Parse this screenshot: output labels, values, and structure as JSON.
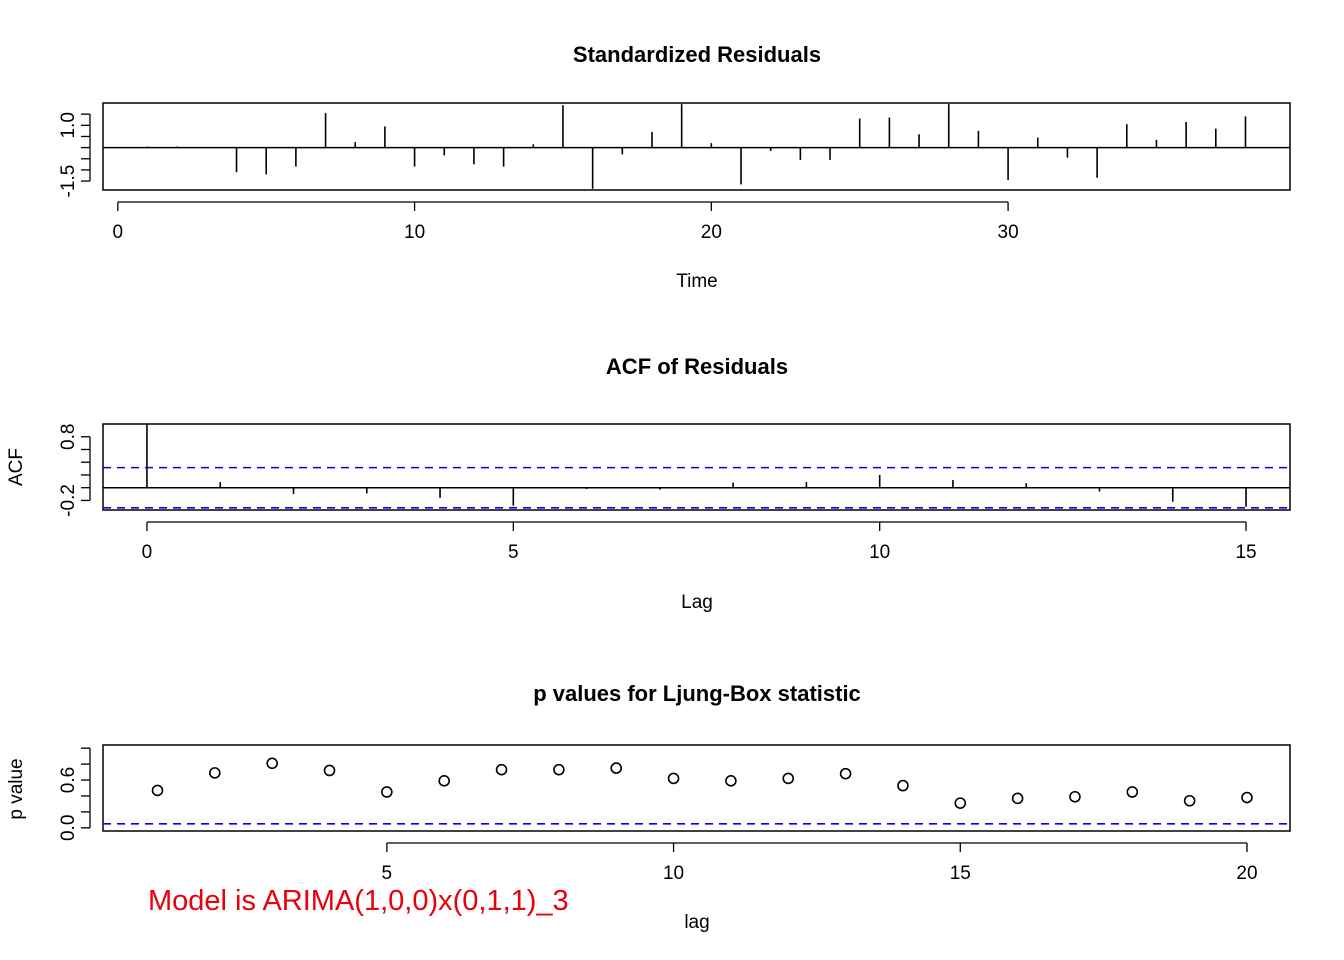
{
  "colors": {
    "reference_line": "#0000ff",
    "note": "#e8000b",
    "ink": "#000000"
  },
  "note": "Model is ARIMA(1,0,0)x(0,1,1)_3",
  "chart_data": [
    {
      "type": "line",
      "style": "histogram-spikes",
      "title": "Standardized Residuals",
      "xlabel": "Time",
      "ylabel": "",
      "xlim": [
        -0.5,
        39.5
      ],
      "ylim": [
        -1.9,
        2.0
      ],
      "xticks": [
        0,
        10,
        20,
        30
      ],
      "yticks": [
        -1.5,
        1.0
      ],
      "ytick_labels": [
        "-1.5",
        "1.0"
      ],
      "y_minor_ticks": [
        -1.5,
        -1.0,
        -0.5,
        0.0,
        0.5,
        1.0,
        1.5
      ],
      "baseline": 0,
      "x": [
        1,
        2,
        3,
        4,
        5,
        6,
        7,
        8,
        9,
        10,
        11,
        12,
        13,
        14,
        15,
        16,
        17,
        18,
        19,
        20,
        21,
        22,
        23,
        24,
        25,
        26,
        27,
        28,
        29,
        30,
        31,
        32,
        33,
        34,
        35,
        36,
        37,
        38
      ],
      "values": [
        0.05,
        0.05,
        0.02,
        -1.1,
        -1.2,
        -0.85,
        1.55,
        0.25,
        0.95,
        -0.85,
        -0.35,
        -0.75,
        -0.85,
        0.15,
        1.9,
        -1.85,
        -0.3,
        0.7,
        1.95,
        0.2,
        -1.65,
        -0.15,
        -0.55,
        -0.55,
        1.3,
        1.35,
        0.6,
        1.95,
        0.75,
        -1.45,
        0.45,
        -0.45,
        -1.35,
        1.05,
        0.35,
        1.15,
        0.85,
        1.4
      ]
    },
    {
      "type": "bar",
      "style": "acf-spikes",
      "title": "ACF of Residuals",
      "xlabel": "Lag",
      "ylabel": "ACF",
      "xlim": [
        -0.6,
        15.6
      ],
      "ylim": [
        -0.35,
        1.0
      ],
      "xticks": [
        0,
        5,
        10,
        15
      ],
      "yticks": [
        -0.2,
        0.8
      ],
      "ytick_labels": [
        "-0.2",
        "0.8"
      ],
      "y_minor_ticks": [
        -0.2,
        0.0,
        0.2,
        0.4,
        0.6,
        0.8
      ],
      "lags": [
        0,
        1,
        2,
        3,
        4,
        5,
        6,
        7,
        8,
        9,
        10,
        11,
        12,
        13,
        14,
        15
      ],
      "values": [
        1.0,
        0.09,
        -0.1,
        -0.09,
        -0.16,
        -0.28,
        -0.02,
        -0.03,
        0.08,
        0.09,
        0.2,
        0.12,
        0.07,
        -0.06,
        -0.22,
        -0.3
      ],
      "confidence_band": [
        0.315,
        -0.315
      ]
    },
    {
      "type": "scatter",
      "style": "open-circles",
      "title": "p values for Ljung-Box statistic",
      "xlabel": "lag",
      "ylabel": "p value",
      "xlim": [
        0.05,
        20.75
      ],
      "ylim": [
        -0.04,
        1.04
      ],
      "xticks": [
        5,
        10,
        15,
        20
      ],
      "yticks": [
        0.0,
        0.6
      ],
      "ytick_labels": [
        "0.0",
        "0.6"
      ],
      "y_minor_ticks": [
        0.0,
        0.2,
        0.4,
        0.6,
        0.8,
        1.0
      ],
      "x": [
        1,
        2,
        3,
        4,
        5,
        6,
        7,
        8,
        9,
        10,
        11,
        12,
        13,
        14,
        15,
        16,
        17,
        18,
        19,
        20
      ],
      "values": [
        0.47,
        0.69,
        0.81,
        0.72,
        0.45,
        0.59,
        0.73,
        0.73,
        0.75,
        0.62,
        0.59,
        0.62,
        0.68,
        0.53,
        0.31,
        0.37,
        0.39,
        0.45,
        0.34,
        0.38
      ],
      "reference_line": 0.05
    }
  ]
}
